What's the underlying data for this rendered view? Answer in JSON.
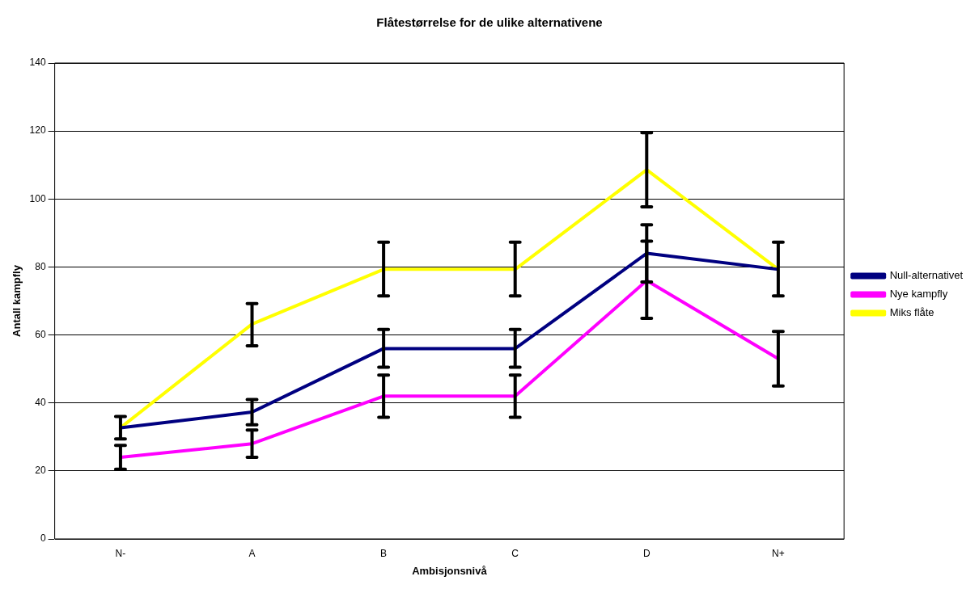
{
  "chart_data": {
    "type": "line",
    "title": "Flåtestørrelse for de ulike alternativene",
    "xlabel": "Ambisjonsnivå",
    "ylabel": "Antall kampfly",
    "categories": [
      "N-",
      "A",
      "B",
      "C",
      "D",
      "N+"
    ],
    "series": [
      {
        "name": "Null-alternativet",
        "color": "#000080",
        "values": [
          32.7,
          37.3,
          56,
          56,
          84,
          79.3
        ],
        "errors": [
          [
            29.4,
            36
          ],
          [
            33.6,
            41
          ],
          [
            50.5,
            61.6
          ],
          [
            50.5,
            61.6
          ],
          [
            75.6,
            92.4
          ],
          null
        ]
      },
      {
        "name": "Nye kampfly",
        "color": "#ff00ff",
        "values": [
          24,
          28,
          42,
          42,
          76,
          53
        ],
        "errors": [
          [
            20.5,
            27.5
          ],
          [
            24,
            32
          ],
          [
            35.8,
            48.2
          ],
          [
            35.8,
            48.2
          ],
          [
            64.9,
            87.6
          ],
          [
            45,
            61
          ]
        ]
      },
      {
        "name": "Miks flåte",
        "color": "#ffff00",
        "values": [
          32.7,
          63.2,
          79.3,
          79.3,
          108.6,
          79.3
        ],
        "errors": [
          null,
          [
            56.8,
            69.2
          ],
          [
            71.5,
            87.3
          ],
          [
            71.5,
            87.3
          ],
          [
            97.7,
            119.5
          ],
          [
            71.5,
            87.3
          ]
        ]
      }
    ],
    "ylim": [
      0,
      140
    ],
    "yticks": [
      0,
      20,
      40,
      60,
      80,
      100,
      120,
      140
    ],
    "grid": "y",
    "legend": "right",
    "marker": "none"
  }
}
